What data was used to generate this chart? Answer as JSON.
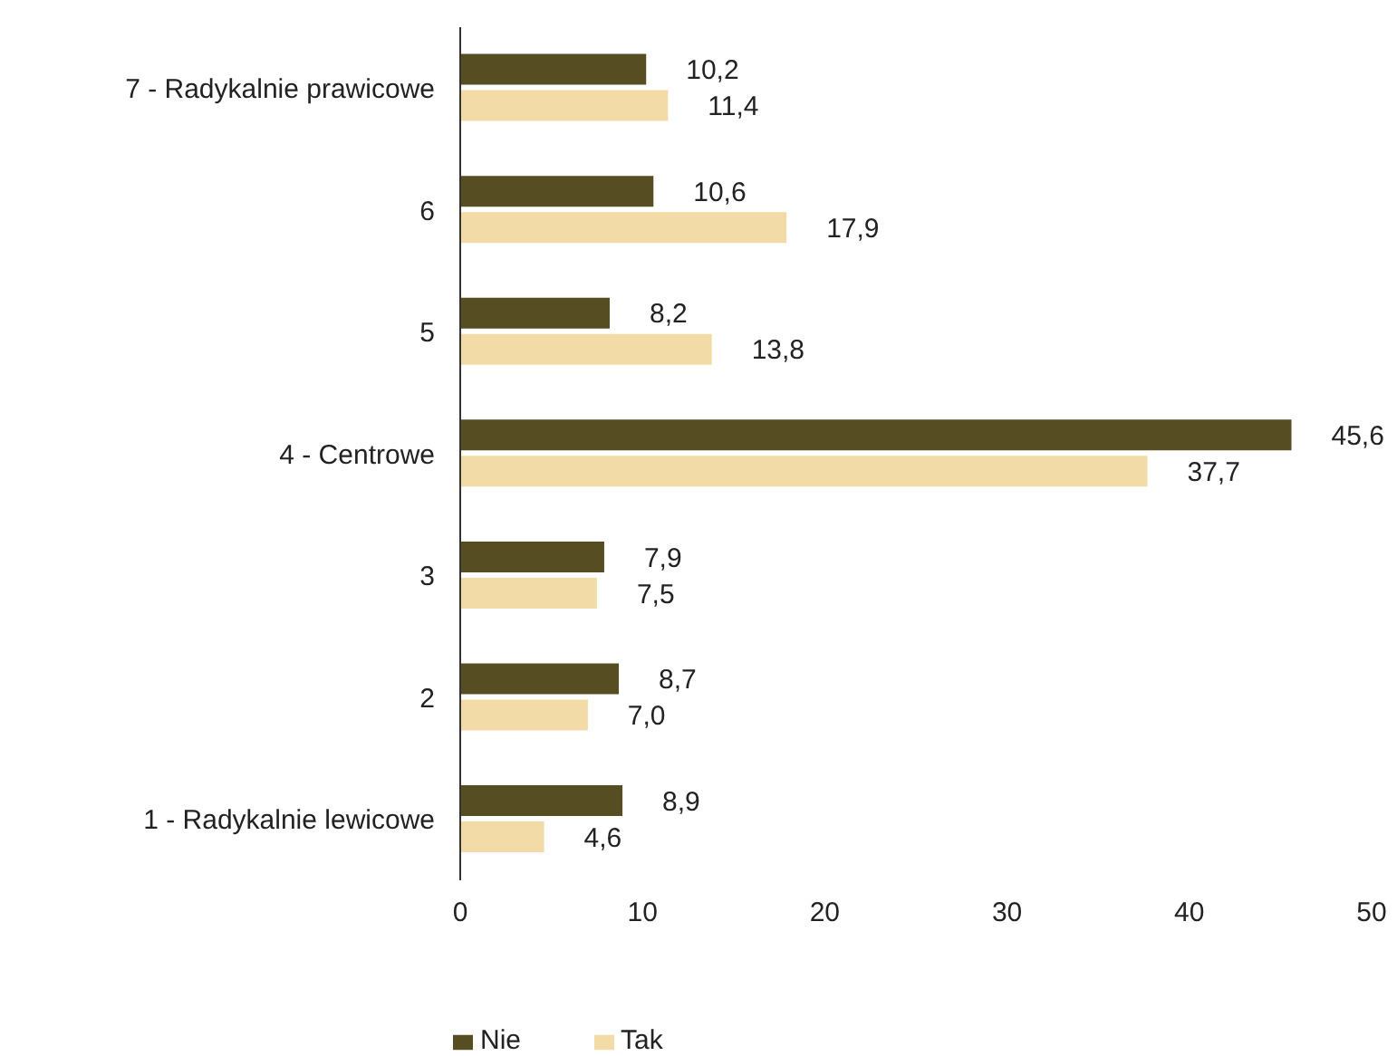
{
  "chart_data": {
    "type": "bar",
    "orientation": "horizontal",
    "categories": [
      "7 - Radykalnie prawicowe",
      "6",
      "5",
      "4 - Centrowe",
      "3",
      "2",
      "1 - Radykalnie lewicowe"
    ],
    "series": [
      {
        "name": "Nie",
        "color": "#564e22",
        "values": [
          10.2,
          10.6,
          8.2,
          45.6,
          7.9,
          8.7,
          8.9
        ],
        "value_labels": [
          "10,2",
          "10,6",
          "8,2",
          "45,6",
          "7,9",
          "8,7",
          "8,9"
        ]
      },
      {
        "name": "Tak",
        "color": "#f2dba6",
        "values": [
          11.4,
          17.9,
          13.8,
          37.7,
          7.5,
          7.0,
          4.6
        ],
        "value_labels": [
          "11,4",
          "17,9",
          "13,8",
          "37,7",
          "7,5",
          "7,0",
          "4,6"
        ]
      }
    ],
    "xlim": [
      0,
      50
    ],
    "xticks": [
      0,
      10,
      20,
      30,
      40,
      50
    ],
    "grid": false,
    "legend": "bottom"
  }
}
